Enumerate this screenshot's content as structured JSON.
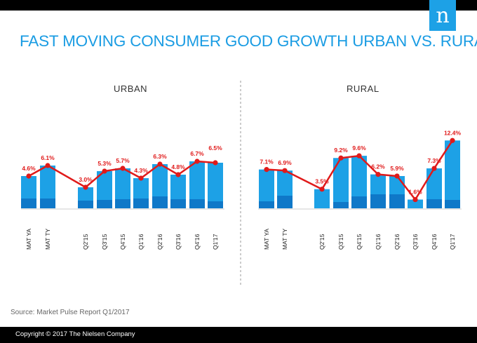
{
  "title": "FAST MOVING CONSUMER GOOD GROWTH URBAN VS. RURAL",
  "logo_text": "n",
  "source": "Source: Market Pulse Report Q1/2017",
  "copyright": "Copyright © 2017 The Nielsen Company",
  "colors": {
    "bar_light": "#1da1e6",
    "bar_dark": "#0f78c8",
    "line": "#e01a1a",
    "label": "#e01a1a",
    "title": "#1a9ce3"
  },
  "chart_data": [
    {
      "type": "bar",
      "title": "URBAN",
      "categories": [
        "MAT YA",
        "MAT TY",
        "Q2'15",
        "Q3'15",
        "Q4'15",
        "Q1'16",
        "Q2'16",
        "Q3'16",
        "Q4'16",
        "Q1'17"
      ],
      "series": [
        {
          "values": [
            4.6,
            6.1,
            3.0,
            5.3,
            5.7,
            4.3,
            6.3,
            4.8,
            6.7,
            6.5
          ],
          "labels": [
            "4.6%",
            "6.1%",
            "3.0%",
            "5.3%",
            "5.7%",
            "4.3%",
            "6.3%",
            "4.8%",
            "6.7%",
            "6.5%"
          ]
        }
      ]
    },
    {
      "type": "bar",
      "title": "RURAL",
      "categories": [
        "MAT YA",
        "MAT TY",
        "Q2'15",
        "Q3'15",
        "Q4'15",
        "Q1'16",
        "Q2'16",
        "Q3'16",
        "Q4'16",
        "Q1'17"
      ],
      "series": [
        {
          "values": [
            7.1,
            6.9,
            3.5,
            9.2,
            9.6,
            6.2,
            5.9,
            1.6,
            7.3,
            12.4
          ],
          "labels": [
            "7.1%",
            "6.9%",
            "3.5%",
            "9.2%",
            "9.6%",
            "6.2%",
            "5.9%",
            "1.6%",
            "7.3%",
            "12.4%"
          ]
        }
      ]
    }
  ]
}
